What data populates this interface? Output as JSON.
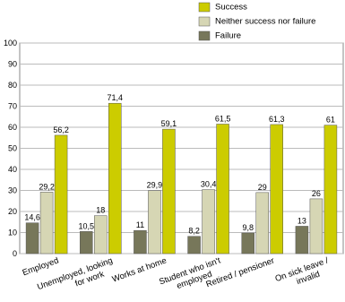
{
  "chart_data": {
    "type": "bar",
    "categories": [
      "Employed",
      "Unemployed, looking for work",
      "Works at home",
      "Student who isn't employed",
      "Retired / pensioner",
      "On sick leave / invalid"
    ],
    "series": [
      {
        "name": "Failure",
        "color": "#77775a",
        "values": [
          14.6,
          10.5,
          11,
          8.2,
          9.8,
          13
        ],
        "value_labels": [
          "14,6",
          "10,5",
          "11",
          "8,2",
          "9,8",
          "13"
        ]
      },
      {
        "name": "Neither success nor failure",
        "color": "#d6d6b4",
        "values": [
          29.2,
          18,
          29.9,
          30.4,
          29,
          26
        ],
        "value_labels": [
          "29,2",
          "18",
          "29,9",
          "30,4",
          "29",
          "26"
        ]
      },
      {
        "name": "Success",
        "color": "#cccc00",
        "values": [
          56.2,
          71.4,
          59.1,
          61.5,
          61.3,
          61
        ],
        "value_labels": [
          "56,2",
          "71,4",
          "59,1",
          "61,5",
          "61,3",
          "61"
        ]
      }
    ],
    "ylim": [
      0,
      100
    ],
    "yticks": [
      0,
      10,
      20,
      30,
      40,
      50,
      60,
      70,
      80,
      90,
      100
    ],
    "grid": true
  }
}
